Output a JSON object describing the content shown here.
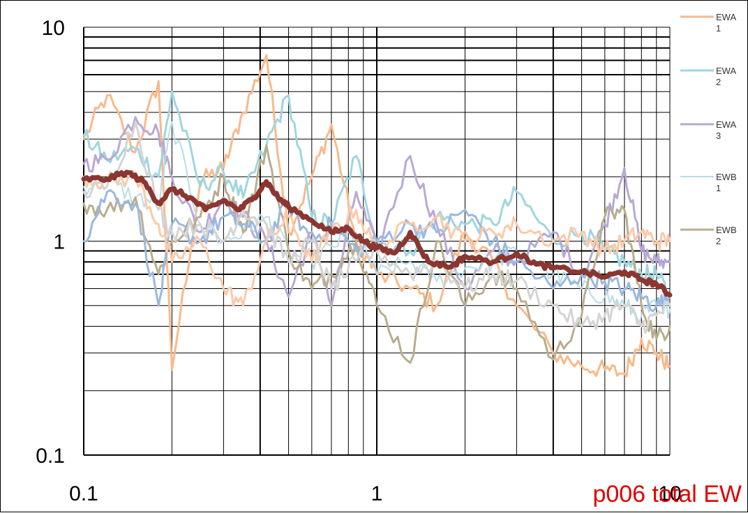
{
  "chart_data": {
    "type": "line",
    "title": "p006 total EW",
    "xlabel": "",
    "ylabel": "",
    "x_scale": "log",
    "y_scale": "log",
    "xlim": [
      0.1,
      10
    ],
    "ylim": [
      0.1,
      10
    ],
    "grid": true,
    "legend_position": "right",
    "x_tick_labels": [
      "0.1",
      "1",
      "10"
    ],
    "y_tick_labels": [
      "0.1",
      "1",
      "10"
    ],
    "series": [
      {
        "label_lines": [
          "EWA",
          "1"
        ],
        "color": "#f9b98a",
        "width": 3,
        "x": [
          0.1,
          0.12,
          0.15,
          0.18,
          0.2,
          0.25,
          0.3,
          0.35,
          0.42,
          0.5,
          0.6,
          0.7,
          0.85,
          1,
          1.3,
          1.6,
          2,
          2.5,
          3,
          4,
          5,
          6,
          7,
          8,
          9,
          10
        ],
        "y": [
          3.0,
          4.8,
          2.6,
          5.6,
          0.25,
          1.9,
          2.2,
          4.0,
          7.4,
          1.1,
          2.0,
          3.5,
          1.0,
          0.7,
          0.6,
          0.5,
          1.1,
          0.8,
          0.5,
          0.3,
          0.26,
          0.25,
          0.24,
          0.35,
          0.3,
          0.26
        ]
      },
      {
        "label_lines": [
          "EWA",
          "2"
        ],
        "color": "#9fd6e0",
        "width": 3,
        "x": [
          0.1,
          0.12,
          0.15,
          0.18,
          0.2,
          0.25,
          0.3,
          0.35,
          0.42,
          0.5,
          0.6,
          0.7,
          0.85,
          1,
          1.3,
          1.6,
          2,
          2.5,
          3,
          4,
          5,
          6,
          7,
          8,
          9,
          10
        ],
        "y": [
          3.1,
          2.4,
          2.7,
          2.0,
          5.0,
          1.8,
          2.1,
          1.6,
          2.8,
          4.8,
          1.3,
          1.2,
          2.5,
          1.0,
          0.9,
          1.3,
          1.2,
          1.2,
          1.7,
          1.0,
          1.1,
          0.9,
          0.8,
          0.7,
          0.7,
          0.55
        ]
      },
      {
        "label_lines": [
          "EWA",
          "3"
        ],
        "color": "#b7a9d4",
        "width": 3,
        "x": [
          0.1,
          0.12,
          0.15,
          0.18,
          0.2,
          0.25,
          0.3,
          0.35,
          0.42,
          0.5,
          0.6,
          0.7,
          0.85,
          1,
          1.3,
          1.6,
          2,
          2.5,
          3,
          4,
          5,
          6,
          7,
          8,
          9,
          10
        ],
        "y": [
          2.3,
          2.4,
          3.8,
          3.2,
          2.0,
          1.1,
          1.6,
          1.3,
          1.0,
          0.55,
          1.1,
          0.5,
          1.7,
          0.9,
          2.5,
          1.2,
          0.6,
          0.9,
          0.8,
          1.1,
          0.7,
          1.2,
          2.2,
          0.9,
          0.8,
          0.8
        ]
      },
      {
        "label_lines": [
          "EWB",
          "1"
        ],
        "color": "#b8dce8",
        "width": 2,
        "x": [
          0.1,
          0.12,
          0.15,
          0.18,
          0.2,
          0.25,
          0.3,
          0.35,
          0.42,
          0.5,
          0.6,
          0.7,
          0.85,
          1,
          1.3,
          1.6,
          2,
          2.5,
          3,
          4,
          5,
          6,
          7,
          8,
          9,
          10
        ],
        "y": [
          1.8,
          1.9,
          1.6,
          1.5,
          3.6,
          1.2,
          1.0,
          1.1,
          1.3,
          0.9,
          0.8,
          0.95,
          1.1,
          0.7,
          0.8,
          0.65,
          0.75,
          0.8,
          0.9,
          0.7,
          0.6,
          0.55,
          0.5,
          0.45,
          0.5,
          0.48
        ]
      },
      {
        "label_lines": [
          "EWB",
          "2"
        ],
        "color": "#b9ad8e",
        "width": 3,
        "x": [
          0.1,
          0.12,
          0.15,
          0.18,
          0.2,
          0.25,
          0.3,
          0.35,
          0.42,
          0.5,
          0.6,
          0.7,
          0.85,
          1,
          1.3,
          1.6,
          2,
          2.5,
          3,
          4,
          5,
          6,
          7,
          8,
          9,
          10
        ],
        "y": [
          1.5,
          1.4,
          1.6,
          0.7,
          1.0,
          1.3,
          2.0,
          1.1,
          2.8,
          0.9,
          0.6,
          0.7,
          1.0,
          0.5,
          0.27,
          1.0,
          0.5,
          0.7,
          0.6,
          0.28,
          0.45,
          1.3,
          1.4,
          0.5,
          0.35,
          0.4
        ]
      },
      {
        "label_lines": [],
        "color": "#9ab8e0",
        "width": 3,
        "x": [
          0.1,
          0.12,
          0.15,
          0.18,
          0.2,
          0.25,
          0.3,
          0.35,
          0.42,
          0.5,
          0.6,
          0.7,
          0.85,
          1,
          1.3,
          1.6,
          2,
          2.5,
          3,
          4,
          5,
          6,
          7,
          8,
          9,
          10
        ],
        "y": [
          1.0,
          1.7,
          1.5,
          0.5,
          1.2,
          1.0,
          1.3,
          1.2,
          1.0,
          1.5,
          1.0,
          1.2,
          0.9,
          1.0,
          1.2,
          1.1,
          1.4,
          1.0,
          0.8,
          0.6,
          0.7,
          0.65,
          0.6,
          0.55,
          0.5,
          0.55
        ]
      },
      {
        "label_lines": [],
        "color": "#fcc9a8",
        "width": 3,
        "x": [
          0.1,
          0.12,
          0.15,
          0.18,
          0.2,
          0.25,
          0.3,
          0.35,
          0.42,
          0.5,
          0.6,
          0.7,
          0.85,
          1,
          1.3,
          1.6,
          2,
          2.5,
          3,
          4,
          5,
          6,
          7,
          8,
          9,
          10
        ],
        "y": [
          2.0,
          1.9,
          2.0,
          1.2,
          0.8,
          1.0,
          0.6,
          0.5,
          1.0,
          1.3,
          0.8,
          1.1,
          1.4,
          0.9,
          1.2,
          1.3,
          1.0,
          1.1,
          1.2,
          1.0,
          1.1,
          0.9,
          1.0,
          1.1,
          1.0,
          1.0
        ]
      },
      {
        "label_lines": [],
        "color": "#d4d4d4",
        "width": 3,
        "x": [
          0.1,
          0.12,
          0.15,
          0.18,
          0.2,
          0.25,
          0.3,
          0.35,
          0.42,
          0.5,
          0.6,
          0.7,
          0.85,
          1,
          1.3,
          1.6,
          2,
          2.5,
          3,
          4,
          5,
          6,
          7,
          8,
          9,
          10
        ],
        "y": [
          1.7,
          1.8,
          3.6,
          1.4,
          1.1,
          1.2,
          1.0,
          1.4,
          1.2,
          0.8,
          1.0,
          0.6,
          0.8,
          0.9,
          0.7,
          0.8,
          0.6,
          0.7,
          0.65,
          0.5,
          0.4,
          0.45,
          0.5,
          0.4,
          0.45,
          0.5
        ]
      },
      {
        "label_lines": [],
        "color": "#8b3630",
        "width": 7,
        "x": [
          0.1,
          0.12,
          0.14,
          0.16,
          0.18,
          0.2,
          0.23,
          0.26,
          0.3,
          0.34,
          0.38,
          0.42,
          0.46,
          0.5,
          0.6,
          0.7,
          0.8,
          0.9,
          1,
          1.15,
          1.3,
          1.5,
          1.8,
          2,
          2.5,
          3,
          3.5,
          4,
          5,
          6,
          7,
          8,
          9,
          10
        ],
        "y": [
          1.95,
          1.95,
          2.1,
          1.9,
          1.5,
          1.75,
          1.6,
          1.4,
          1.55,
          1.4,
          1.6,
          1.9,
          1.6,
          1.45,
          1.25,
          1.1,
          1.15,
          1.0,
          0.93,
          0.88,
          1.1,
          0.8,
          0.76,
          0.85,
          0.8,
          0.88,
          0.78,
          0.75,
          0.72,
          0.68,
          0.72,
          0.66,
          0.63,
          0.56
        ]
      }
    ]
  }
}
